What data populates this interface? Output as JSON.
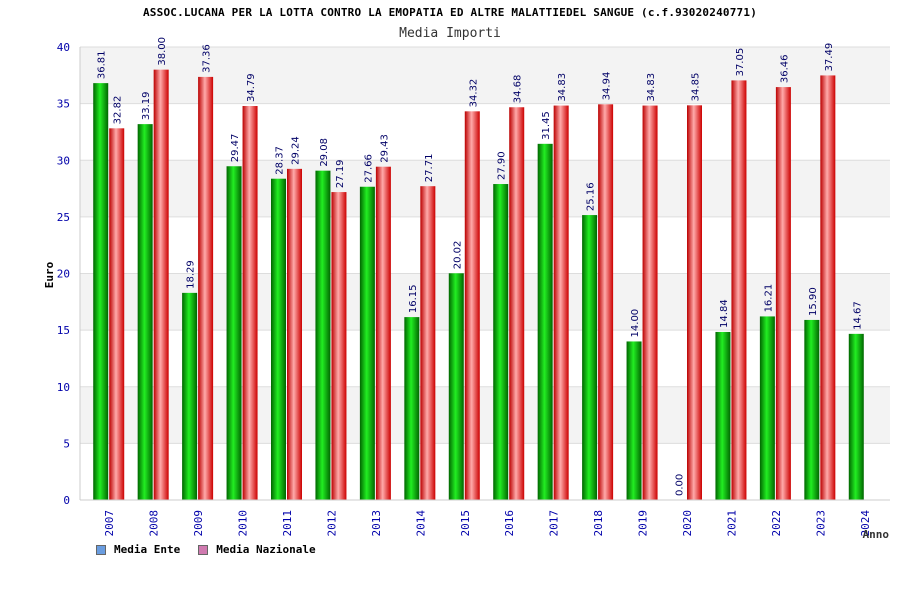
{
  "chart_data": {
    "type": "bar",
    "title": "ASSOC.LUCANA PER LA LOTTA CONTRO LA EMOPATIA ED ALTRE MALATTIEDEL SANGUE (c.f.93020240771)",
    "subtitle": "Media Importi",
    "ylabel": "Euro",
    "xlabel": "Anno",
    "ylim": [
      0,
      40
    ],
    "yticks": [
      0,
      5,
      10,
      15,
      20,
      25,
      30,
      35,
      40
    ],
    "grid": true,
    "legend_position": "bottom-left",
    "categories": [
      "2007",
      "2008",
      "2009",
      "2010",
      "2011",
      "2012",
      "2013",
      "2014",
      "2015",
      "2016",
      "2017",
      "2018",
      "2019",
      "2020",
      "2021",
      "2022",
      "2023",
      "2024"
    ],
    "series": [
      {
        "name": "Media Ente",
        "color": "#00aa00",
        "legend_color": "#6a9de0",
        "values": [
          36.81,
          33.19,
          18.29,
          29.47,
          28.37,
          29.08,
          27.66,
          16.15,
          20.02,
          27.9,
          31.45,
          25.16,
          14.0,
          0.0,
          14.84,
          16.21,
          15.9,
          14.67
        ],
        "labels": [
          "36.81",
          "33.19",
          "18.29",
          "29.47",
          "28.37",
          "29.08",
          "27.66",
          "16.15",
          "20.02",
          "27.90",
          "31.45",
          "25.16",
          "14.00",
          "0.00",
          "14.84",
          "16.21",
          "15.90",
          "14.67"
        ]
      },
      {
        "name": "Media Nazionale",
        "color": "#dd1111",
        "legend_color": "#d07ab0",
        "values": [
          32.82,
          38.0,
          37.36,
          34.79,
          29.24,
          27.19,
          29.43,
          27.71,
          34.32,
          34.68,
          34.83,
          34.94,
          34.83,
          34.85,
          37.05,
          36.46,
          37.49,
          null
        ],
        "labels": [
          "32.82",
          "38.00",
          "37.36",
          "34.79",
          "29.24",
          "27.19",
          "29.43",
          "27.71",
          "34.32",
          "34.68",
          "34.83",
          "34.94",
          "34.83",
          "34.85",
          "37.05",
          "36.46",
          "37.49",
          ""
        ]
      }
    ]
  }
}
